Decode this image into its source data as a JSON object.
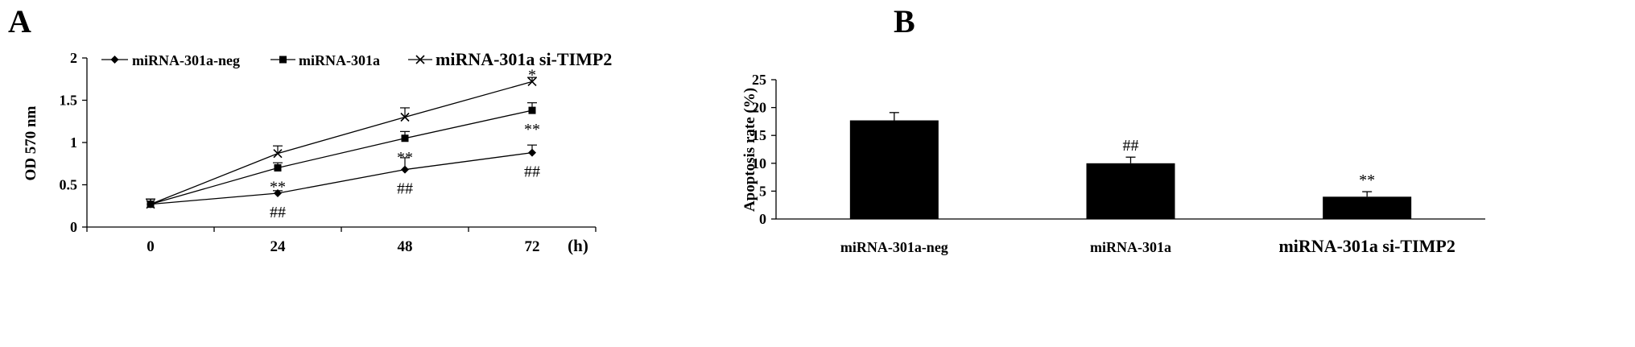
{
  "panels": {
    "a_letter": "A",
    "b_letter": "B"
  },
  "chart_data": [
    {
      "type": "line",
      "title": "",
      "xlabel": "",
      "x_unit": "(h)",
      "ylabel": "OD 570 nm",
      "x": [
        0,
        24,
        48,
        72
      ],
      "x_tick_labels": [
        "0",
        "24",
        "48",
        "72"
      ],
      "y_ticks": [
        0,
        0.5,
        1,
        1.5,
        2
      ],
      "y_tick_labels": [
        "0",
        "0.5",
        "1",
        "1.5",
        "2"
      ],
      "ylim": [
        0,
        2
      ],
      "legend_position": "top",
      "series": [
        {
          "name": "miRNA-301a-neg",
          "marker": "diamond",
          "values": [
            0.27,
            0.4,
            0.68,
            0.88
          ],
          "errors": [
            0.06,
            0.03,
            0.14,
            0.09
          ],
          "annotations": [
            "",
            "##",
            "##",
            "##"
          ]
        },
        {
          "name": "miRNA-301a",
          "marker": "square",
          "values": [
            0.27,
            0.7,
            1.05,
            1.38
          ],
          "errors": [
            0.06,
            0.06,
            0.08,
            0.09
          ],
          "annotations": [
            "",
            "**",
            "**",
            "**"
          ]
        },
        {
          "name": "miRNA-301a si-TIMP2",
          "marker": "x",
          "values": [
            0.27,
            0.87,
            1.3,
            1.72
          ],
          "errors": [
            0.06,
            0.09,
            0.11,
            0.05
          ],
          "annotations": [
            "",
            "",
            "",
            "*"
          ]
        }
      ]
    },
    {
      "type": "bar",
      "title": "",
      "xlabel": "",
      "ylabel": "Apoptosis rate (%)",
      "categories": [
        "miRNA-301a-neg",
        "miRNA-301a",
        "miRNA-301a si-TIMP2"
      ],
      "values": [
        17.7,
        10.0,
        4.0
      ],
      "errors": [
        1.4,
        1.1,
        0.9
      ],
      "annotations": [
        "",
        "##",
        "**"
      ],
      "y_ticks": [
        0,
        5,
        10,
        15,
        20,
        25
      ],
      "y_tick_labels": [
        "0",
        "5",
        "10",
        "15",
        "20",
        "25"
      ],
      "ylim": [
        0,
        25
      ],
      "bar_color": "#000000"
    }
  ]
}
